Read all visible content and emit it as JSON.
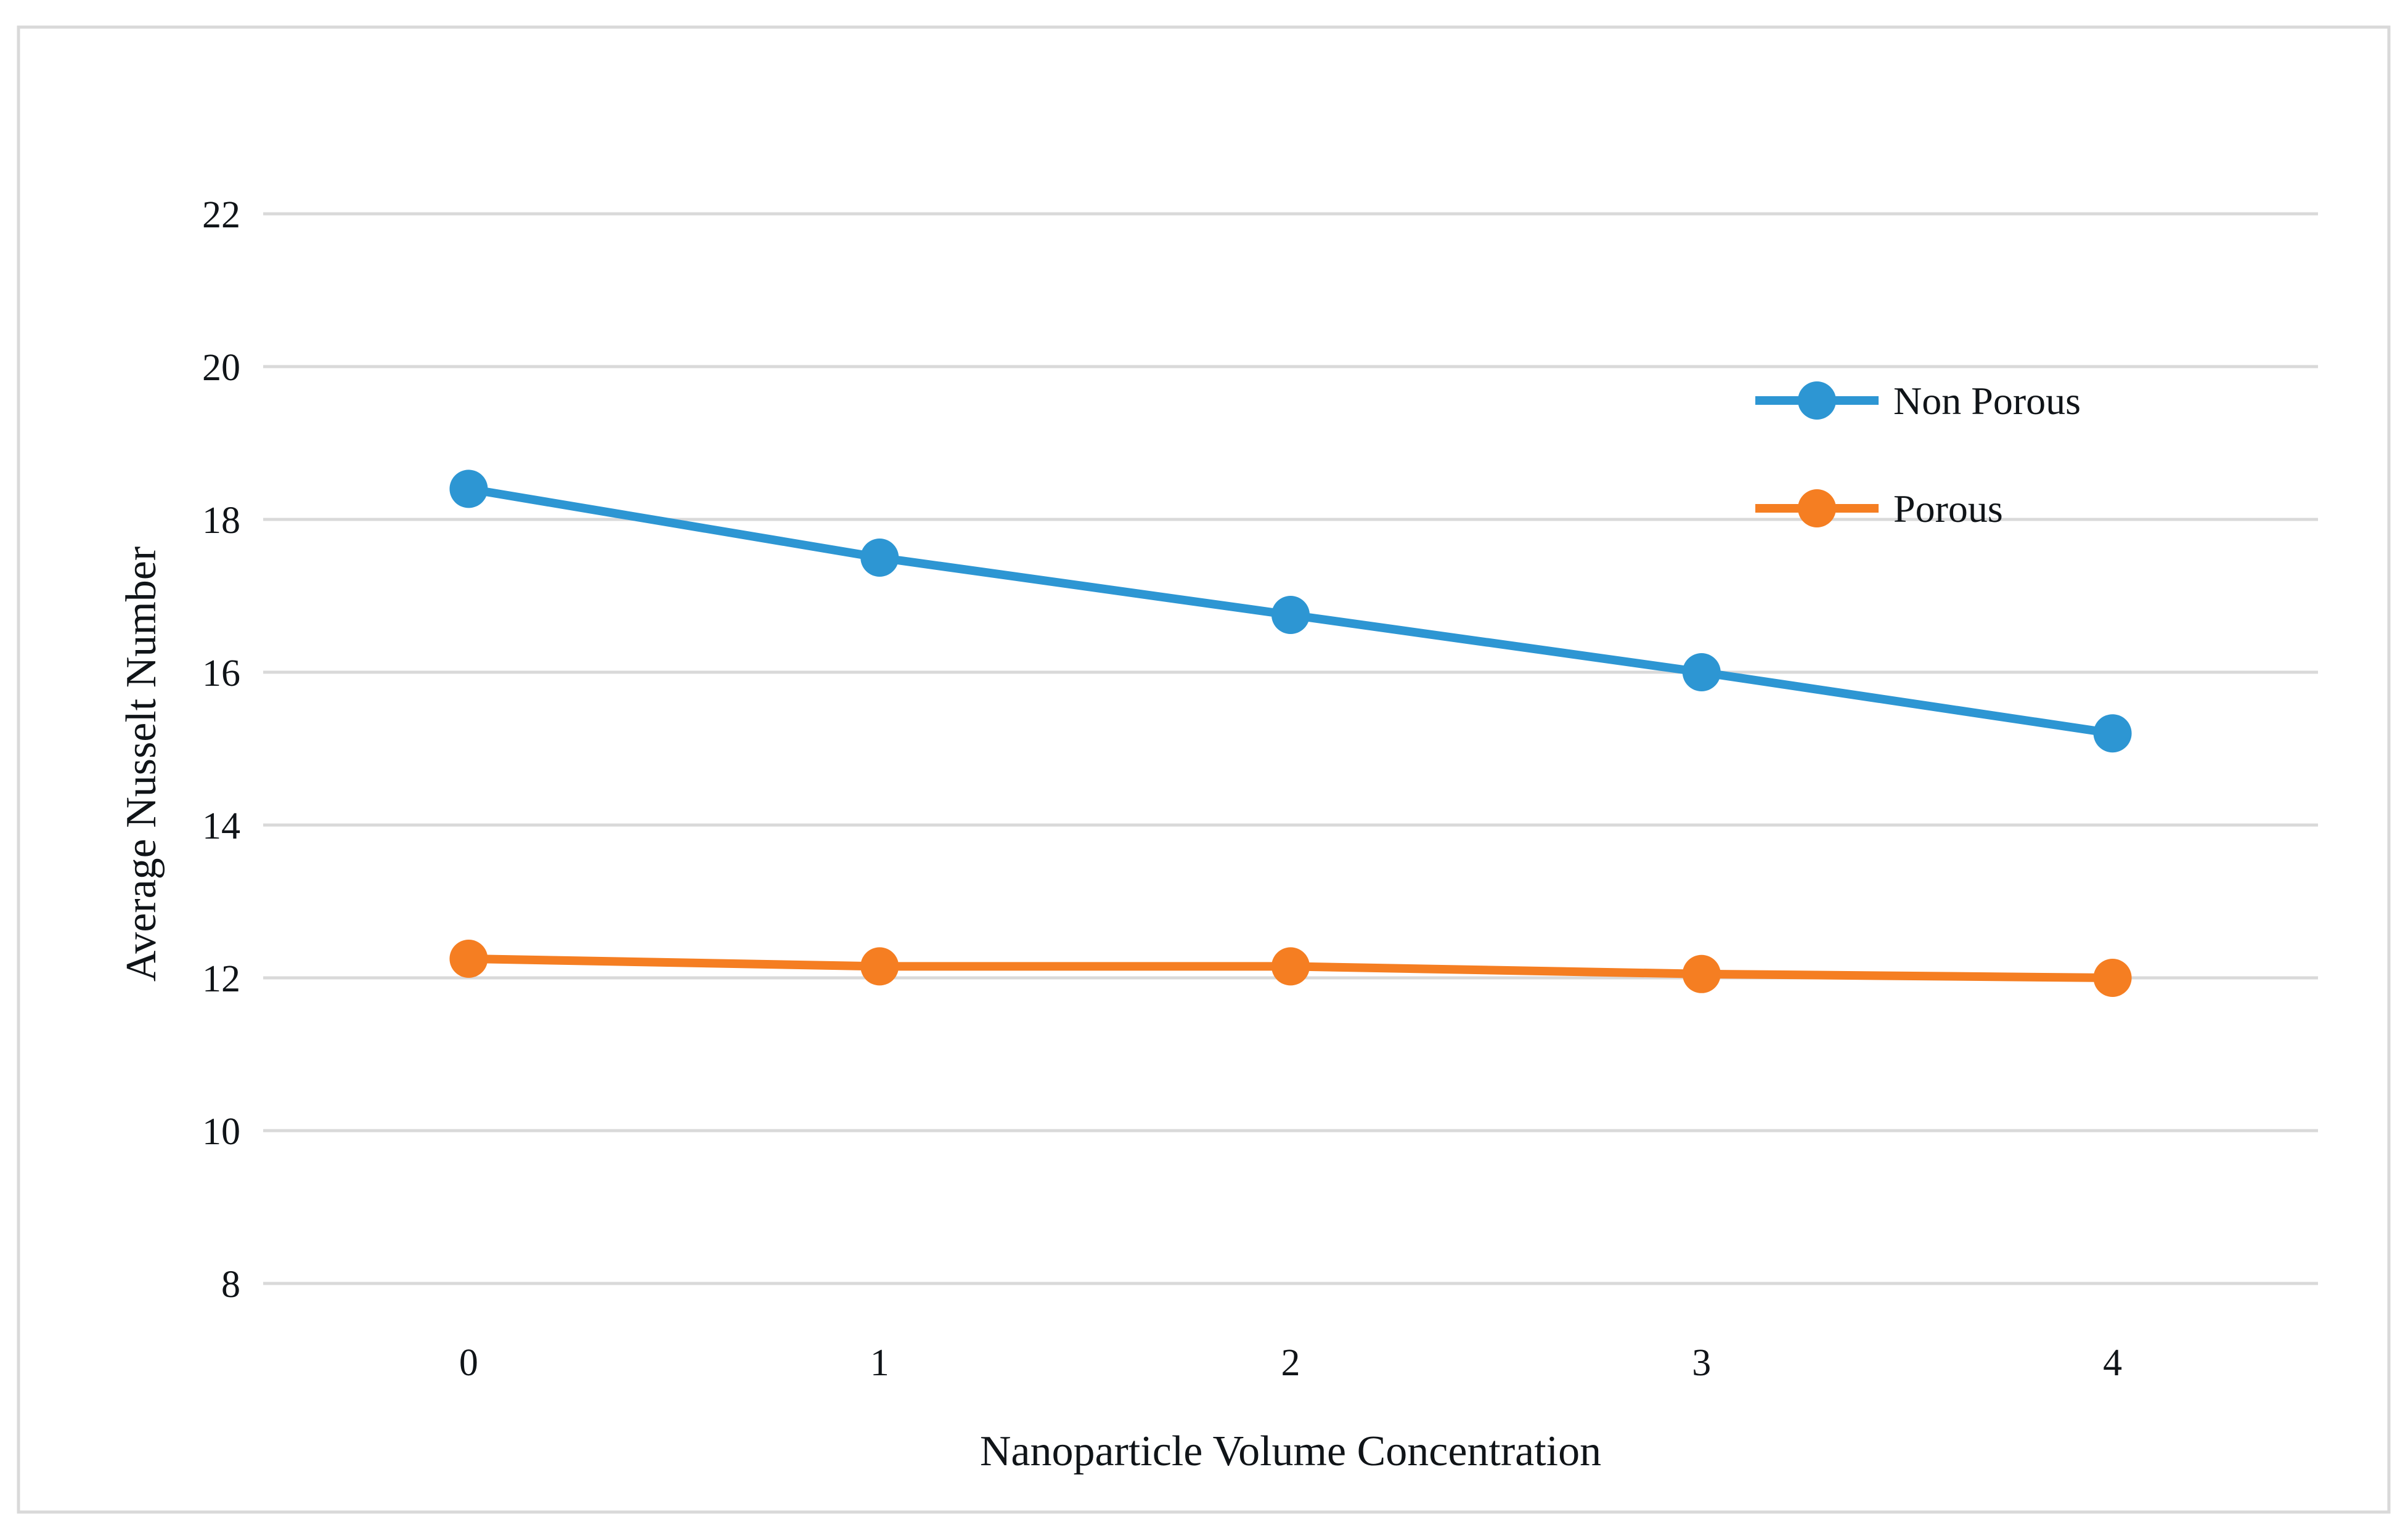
{
  "figure": {
    "background": "#ffffff",
    "border_color": "#d9d9d9"
  },
  "chart_data": {
    "type": "line",
    "title": "",
    "xlabel": "Nanoparticle Volume Concentration",
    "ylabel": "Average Nusselt Number",
    "x": [
      0,
      1,
      2,
      3,
      4
    ],
    "xticks": [
      "0",
      "1",
      "2",
      "3",
      "4"
    ],
    "yticks": [
      8,
      10,
      12,
      14,
      16,
      18,
      20,
      22
    ],
    "ylim": [
      8,
      22
    ],
    "grid": "horizontal",
    "gridline_color": "#d9d9d9",
    "legend_position": "inside-upper-right",
    "series": [
      {
        "name": "Non Porous",
        "color": "#2d96d3",
        "marker": "circle",
        "values": [
          18.4,
          17.5,
          16.75,
          16.0,
          15.2
        ]
      },
      {
        "name": "Porous",
        "color": "#f57e22",
        "marker": "circle",
        "values": [
          12.25,
          12.15,
          12.15,
          12.05,
          12.0
        ]
      }
    ]
  }
}
